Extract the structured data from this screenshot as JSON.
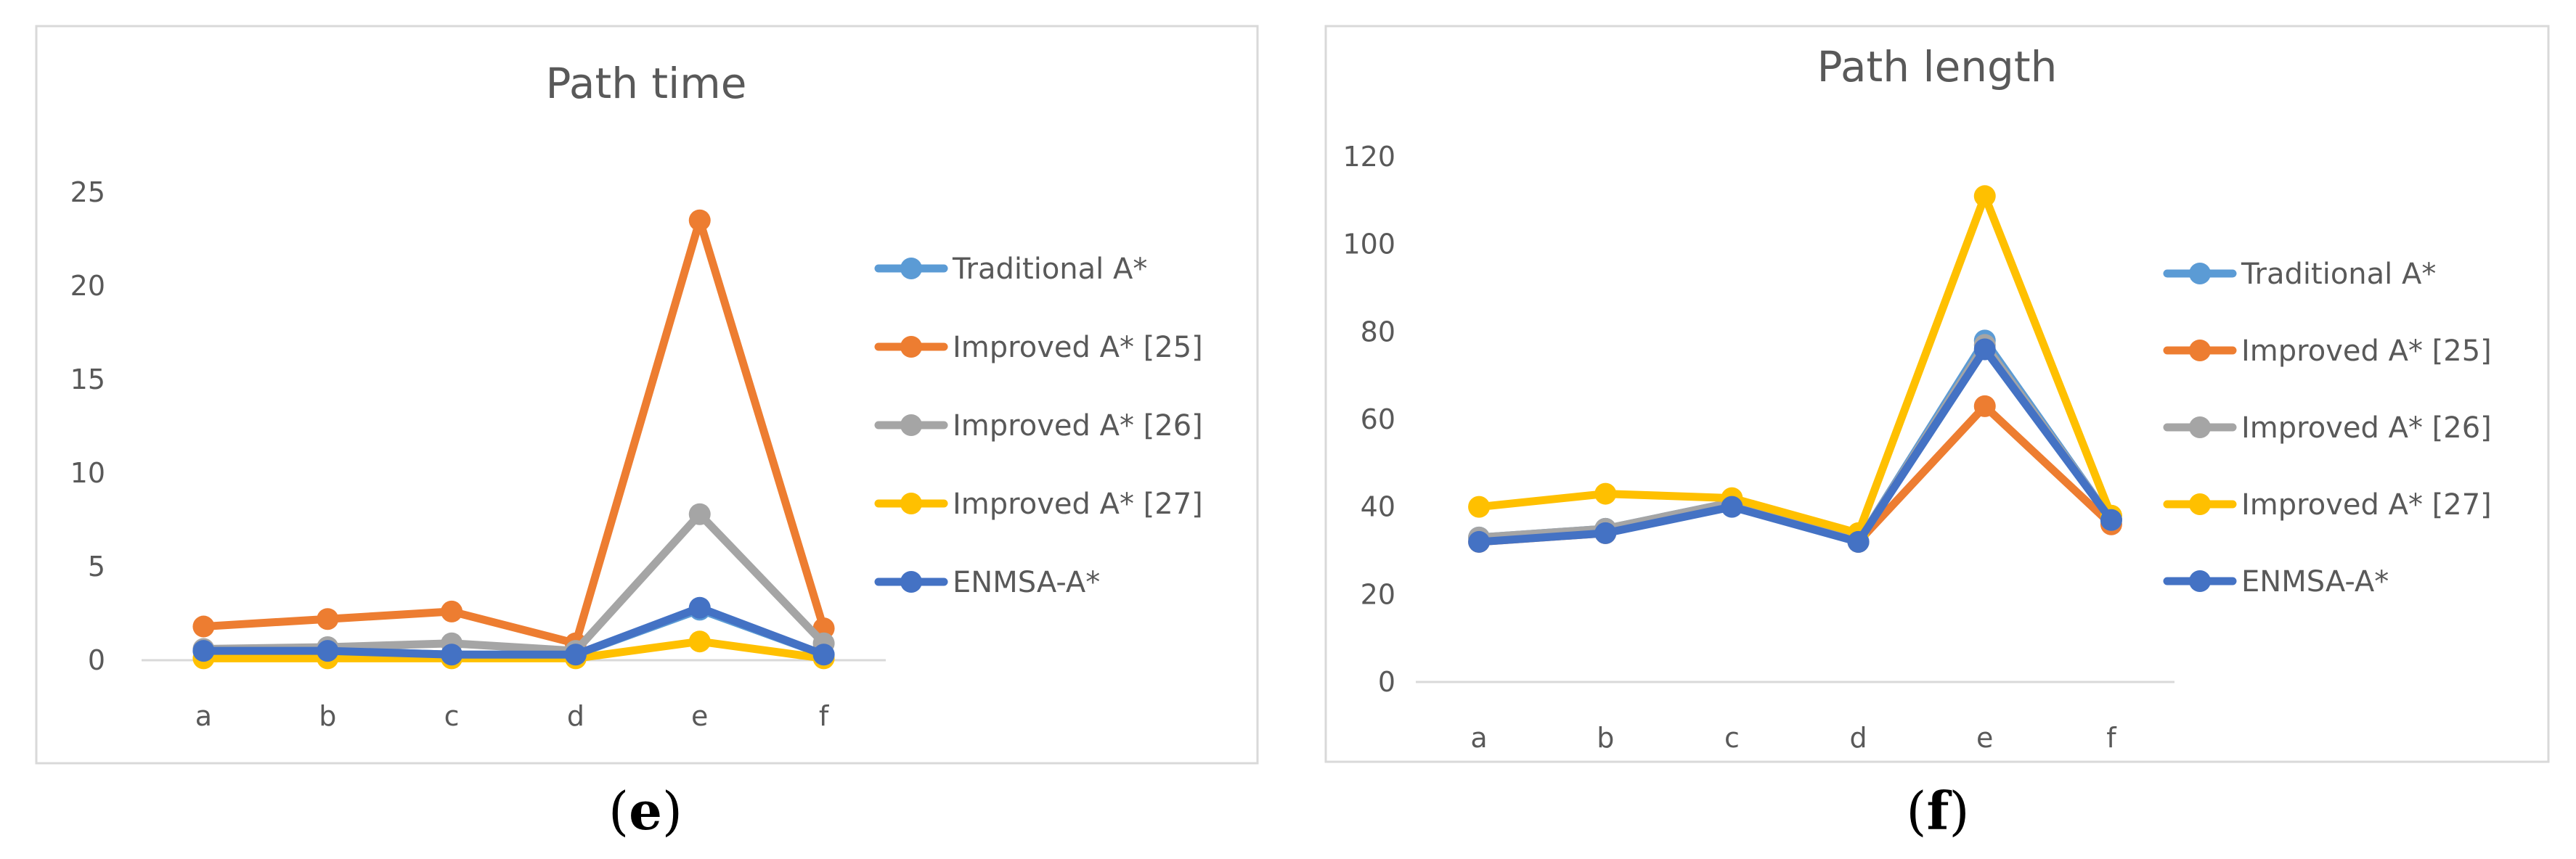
{
  "chart_data": [
    {
      "type": "line",
      "title": "Path time",
      "categories": [
        "a",
        "b",
        "c",
        "d",
        "e",
        "f"
      ],
      "ylim": [
        0,
        25
      ],
      "yticks": [
        0,
        5,
        10,
        15,
        20,
        25
      ],
      "grid": false,
      "legend_position": "right",
      "series": [
        {
          "name": "Traditional A*",
          "color": "#5B9BD5",
          "values": [
            0.5,
            0.5,
            0.3,
            0.3,
            2.7,
            0.3
          ]
        },
        {
          "name": "Improved A* [25]",
          "color": "#ED7D31",
          "values": [
            1.8,
            2.2,
            2.6,
            0.9,
            23.5,
            1.7
          ]
        },
        {
          "name": "Improved A* [26]",
          "color": "#A5A5A5",
          "values": [
            0.6,
            0.7,
            0.9,
            0.5,
            7.8,
            0.9
          ]
        },
        {
          "name": "Improved A* [27]",
          "color": "#FFC000",
          "values": [
            0.1,
            0.1,
            0.1,
            0.1,
            1.0,
            0.1
          ]
        },
        {
          "name": "ENMSA-A*",
          "color": "#4472C4",
          "values": [
            0.5,
            0.5,
            0.3,
            0.3,
            2.8,
            0.3
          ]
        }
      ],
      "caption": "e"
    },
    {
      "type": "line",
      "title": "Path length",
      "categories": [
        "a",
        "b",
        "c",
        "d",
        "e",
        "f"
      ],
      "ylim": [
        0,
        120
      ],
      "yticks": [
        0,
        20,
        40,
        60,
        80,
        100,
        120
      ],
      "grid": false,
      "legend_position": "right",
      "series": [
        {
          "name": "Traditional A*",
          "color": "#5B9BD5",
          "values": [
            33,
            35,
            41,
            32,
            78,
            37
          ]
        },
        {
          "name": "Improved A* [25]",
          "color": "#ED7D31",
          "values": [
            32,
            34,
            41,
            32,
            63,
            36
          ]
        },
        {
          "name": "Improved A* [26]",
          "color": "#A5A5A5",
          "values": [
            33,
            35,
            41,
            32,
            77,
            37
          ]
        },
        {
          "name": "Improved A* [27]",
          "color": "#FFC000",
          "values": [
            40,
            43,
            42,
            34,
            111,
            38
          ]
        },
        {
          "name": "ENMSA-A*",
          "color": "#4472C4",
          "values": [
            32,
            34,
            40,
            32,
            76,
            37
          ]
        }
      ],
      "caption": "f"
    }
  ],
  "captions": {
    "left": "e",
    "right": "f",
    "open": "(",
    "close": ")"
  }
}
